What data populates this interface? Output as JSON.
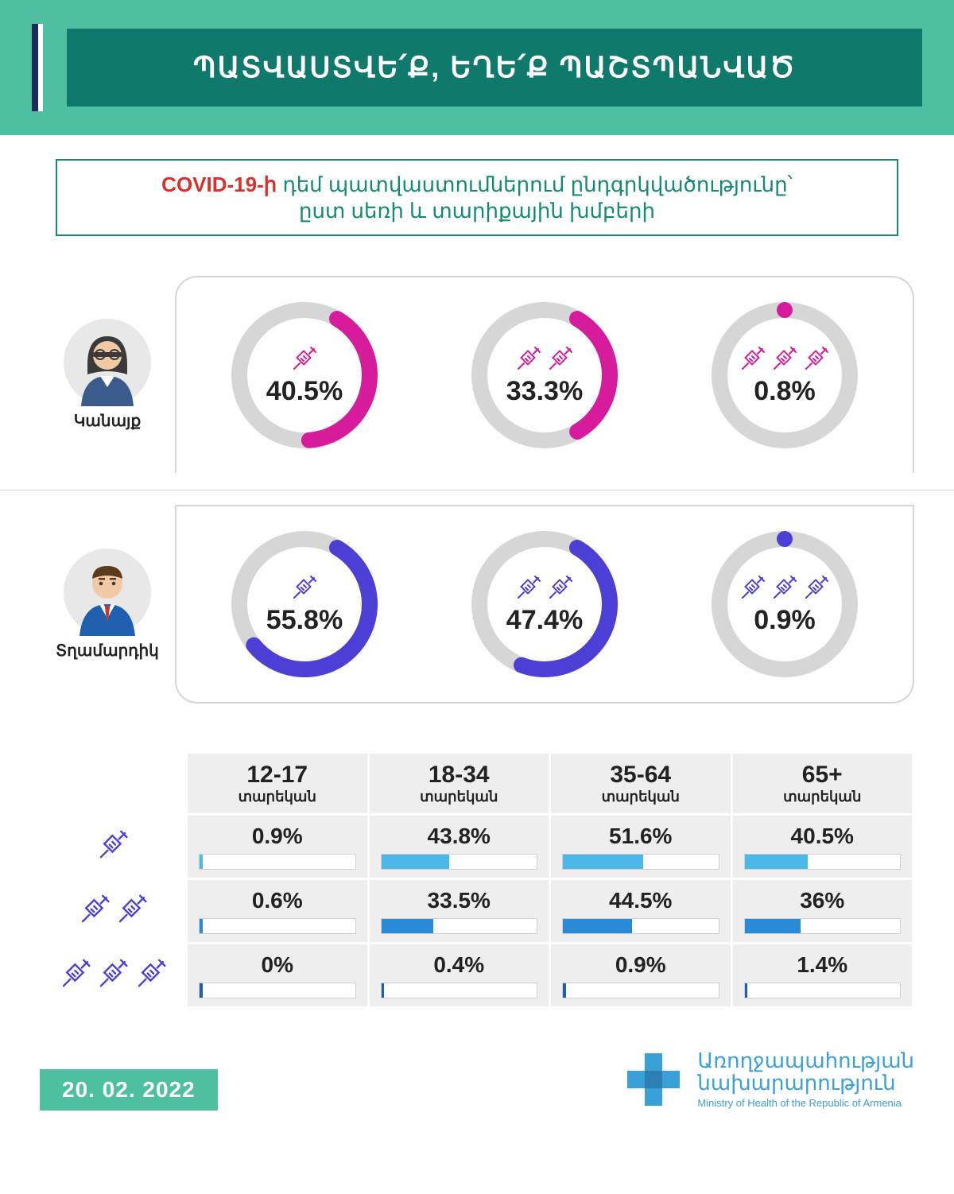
{
  "colors": {
    "header_band": "#4fbfa1",
    "header_title_bg": "#0f7a6b",
    "header_accent_dark": "#1b2b5c",
    "subtitle_border": "#128a76",
    "covid_red": "#d9302f",
    "donut_track": "#d6d6d6",
    "female": "#d61c9c",
    "male": "#4b3fd6",
    "syringe": "#4b3fd6",
    "bar1": "#4bb8e8",
    "bar2": "#2a8ad6",
    "bar3": "#1f5fb0",
    "ministry_blue": "#3aa0d8"
  },
  "header": {
    "title": "ՊԱՏՎԱՍՏՎԵ՛Ք, ԵՂԵ՛Ք ՊԱՇՏՊԱՆՎԱԾ"
  },
  "subtitle": {
    "covid": "COVID-19-ի",
    "rest_line1": " դեմ պատվաստումներում ընդգրկվածությունը՝",
    "rest_line2": "ըստ սեռի և տարիքային խմբերի"
  },
  "gender_rows": [
    {
      "key": "female",
      "label": "Կանայք",
      "color": "#d61c9c",
      "avatar": "female",
      "doses": [
        {
          "syringe_count": 1,
          "pct": 40.5,
          "label": "40.5%"
        },
        {
          "syringe_count": 2,
          "pct": 33.3,
          "label": "33.3%"
        },
        {
          "syringe_count": 3,
          "pct": 0.8,
          "label": "0.8%"
        }
      ]
    },
    {
      "key": "male",
      "label": "Տղամարդիկ",
      "color": "#4b3fd6",
      "avatar": "male",
      "doses": [
        {
          "syringe_count": 1,
          "pct": 55.8,
          "label": "55.8%"
        },
        {
          "syringe_count": 2,
          "pct": 47.4,
          "label": "47.4%"
        },
        {
          "syringe_count": 3,
          "pct": 0.9,
          "label": "0.9%"
        }
      ]
    }
  ],
  "age_table": {
    "age_unit": "տարեկան",
    "columns": [
      "12-17",
      "18-34",
      "35-64",
      "65+"
    ],
    "rows": [
      {
        "syringe_count": 1,
        "bar_color": "#4bb8e8",
        "cells": [
          {
            "pct": 0.9,
            "label": "0.9%"
          },
          {
            "pct": 43.8,
            "label": "43.8%"
          },
          {
            "pct": 51.6,
            "label": "51.6%"
          },
          {
            "pct": 40.5,
            "label": "40.5%"
          }
        ]
      },
      {
        "syringe_count": 2,
        "bar_color": "#2a8ad6",
        "cells": [
          {
            "pct": 0.6,
            "label": "0.6%"
          },
          {
            "pct": 33.5,
            "label": "33.5%"
          },
          {
            "pct": 44.5,
            "label": "44.5%"
          },
          {
            "pct": 36.0,
            "label": "36%"
          }
        ]
      },
      {
        "syringe_count": 3,
        "bar_color": "#1f5fb0",
        "cells": [
          {
            "pct": 0.0,
            "label": "0%"
          },
          {
            "pct": 0.4,
            "label": "0.4%"
          },
          {
            "pct": 0.9,
            "label": "0.9%"
          },
          {
            "pct": 1.4,
            "label": "1.4%"
          }
        ]
      }
    ]
  },
  "footer": {
    "date": "20. 02. 2022",
    "ministry_am_l1": "Առողջապահության",
    "ministry_am_l2": "նախարարություն",
    "ministry_en": "Ministry of Health of the Republic of Armenia"
  },
  "typography": {
    "title_fontsize": 36,
    "subtitle_fontsize": 26,
    "donut_pct_fontsize": 34,
    "table_pct_fontsize": 28
  },
  "donut": {
    "track_width": 18,
    "radius": 90,
    "start_angle_deg": -90
  }
}
